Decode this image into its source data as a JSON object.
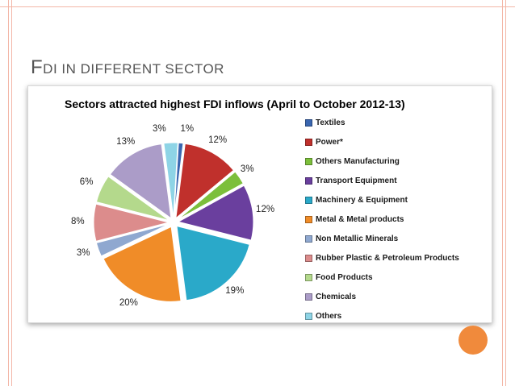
{
  "slide": {
    "title_first": "F",
    "title_rest": "DI IN DIFFERENT SECTOR"
  },
  "colors": {
    "Textiles": "#3a66b0",
    "Power*": "#c0302c",
    "Others Manufacturing": "#7cbf3b",
    "Transport Equipment": "#6a3f9e",
    "Machinery & Equipment": "#2aa9c9",
    "Metal & Metal products": "#f08c28",
    "Non Metallic Minerals": "#8fa8d0",
    "Rubber Plastic & Petroleum Products": "#dc8c8c",
    "Food Products": "#b4d98c",
    "Chemicals": "#ab9cc8",
    "Others": "#8ed4e6"
  },
  "chart_data": {
    "type": "pie",
    "title": "Sectors attracted highest FDI inflows (April to October 2012-13)",
    "legend_position": "right",
    "categories": [
      "Textiles",
      "Power*",
      "Others Manufacturing",
      "Transport Equipment",
      "Machinery & Equipment",
      "Metal & Metal products",
      "Non Metallic Minerals",
      "Rubber Plastic & Petroleum Products",
      "Food Products",
      "Chemicals",
      "Others"
    ],
    "values": [
      1,
      12,
      3,
      12,
      19,
      20,
      3,
      8,
      6,
      13,
      3
    ],
    "labels": [
      "1%",
      "12%",
      "3%",
      "12%",
      "19%",
      "20%",
      "3%",
      "8%",
      "6%",
      "13%",
      "3%"
    ]
  }
}
